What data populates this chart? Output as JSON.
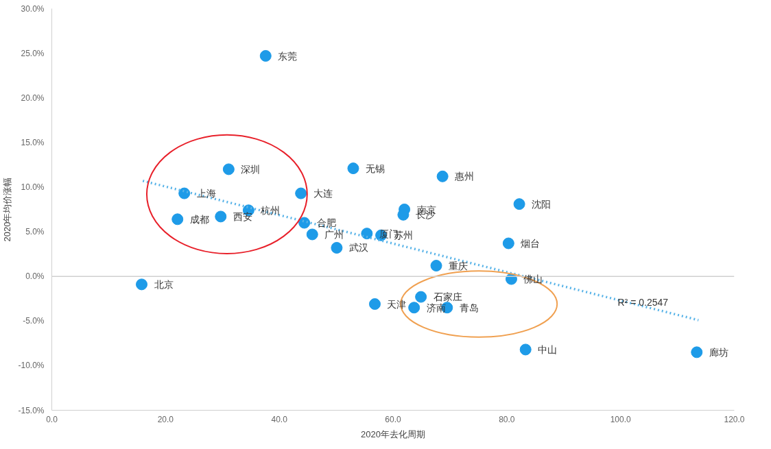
{
  "chart_data": {
    "type": "scatter",
    "xlabel": "2020年去化周期",
    "ylabel": "2020年均价涨幅",
    "xlim": [
      0,
      120
    ],
    "ylim": [
      -15,
      30
    ],
    "xticks": [
      {
        "value": 0,
        "label": "0.0"
      },
      {
        "value": 20,
        "label": "20.0"
      },
      {
        "value": 40,
        "label": "40.0"
      },
      {
        "value": 60,
        "label": "60.0"
      },
      {
        "value": 80,
        "label": "80.0"
      },
      {
        "value": 100,
        "label": "100.0"
      },
      {
        "value": 120,
        "label": "120.0"
      }
    ],
    "yticks": [
      {
        "value": -15,
        "label": "-15.0%"
      },
      {
        "value": -10,
        "label": "-10.0%"
      },
      {
        "value": -5,
        "label": "-5.0%"
      },
      {
        "value": 0,
        "label": "0.0%"
      },
      {
        "value": 5,
        "label": "5.0%"
      },
      {
        "value": 10,
        "label": "10.0%"
      },
      {
        "value": 15,
        "label": "15.0%"
      },
      {
        "value": 20,
        "label": "20.0%"
      },
      {
        "value": 25,
        "label": "25.0%"
      },
      {
        "value": 30,
        "label": "30.0%"
      }
    ],
    "ref_lines": [
      {
        "axis": "y",
        "value": 0,
        "color": "#d0d0d0"
      }
    ],
    "grid": false,
    "marker": "circle",
    "series": [
      {
        "color": "#1e9be8",
        "x": [
          37.6,
          31.1,
          53.0,
          68.7,
          23.3,
          43.8,
          82.2,
          34.6,
          62.0,
          61.8,
          22.1,
          29.7,
          44.4,
          45.8,
          55.4,
          57.9,
          80.3,
          50.1,
          67.6,
          80.8,
          15.8,
          64.9,
          56.8,
          63.7,
          69.5,
          83.3,
          113.4
        ],
        "values": [
          24.7,
          12.0,
          12.1,
          11.2,
          9.3,
          9.3,
          8.1,
          7.4,
          7.5,
          6.9,
          6.4,
          6.7,
          6.0,
          4.7,
          4.8,
          4.6,
          3.7,
          3.2,
          1.2,
          -0.3,
          -0.9,
          -2.3,
          -3.1,
          -3.5,
          -3.5,
          -8.2,
          -8.5
        ]
      },
      {
        "type": "line",
        "color": "#5ab4e8",
        "line_style": "dotted",
        "marker": "none",
        "x": [
          16,
          113.7
        ],
        "values": [
          10.7,
          -4.9
        ]
      }
    ],
    "annotations": [
      {
        "text": "东莞",
        "x": 37.6,
        "y": 24.7
      },
      {
        "text": "深圳",
        "x": 31.1,
        "y": 12.0
      },
      {
        "text": "无锡",
        "x": 53.0,
        "y": 12.1
      },
      {
        "text": "惠州",
        "x": 68.7,
        "y": 11.2
      },
      {
        "text": "上海",
        "x": 23.3,
        "y": 9.3
      },
      {
        "text": "大连",
        "x": 43.8,
        "y": 9.3
      },
      {
        "text": "沈阳",
        "x": 82.2,
        "y": 8.1
      },
      {
        "text": "杭州",
        "x": 34.6,
        "y": 7.4
      },
      {
        "text": "南京",
        "x": 62.0,
        "y": 7.5
      },
      {
        "text": "长沙",
        "x": 61.8,
        "y": 6.9
      },
      {
        "text": "成都",
        "x": 22.1,
        "y": 6.4
      },
      {
        "text": "西安",
        "x": 29.7,
        "y": 6.7
      },
      {
        "text": "合肥",
        "x": 44.4,
        "y": 6.0
      },
      {
        "text": "广州",
        "x": 45.8,
        "y": 4.7
      },
      {
        "text": "厦门",
        "x": 55.4,
        "y": 4.8
      },
      {
        "text": "苏州",
        "x": 57.9,
        "y": 4.6
      },
      {
        "text": "烟台",
        "x": 80.3,
        "y": 3.7
      },
      {
        "text": "武汉",
        "x": 50.1,
        "y": 3.2
      },
      {
        "text": "重庆",
        "x": 67.6,
        "y": 1.2
      },
      {
        "text": "佛山",
        "x": 80.8,
        "y": -0.3
      },
      {
        "text": "北京",
        "x": 15.8,
        "y": -0.9
      },
      {
        "text": "石家庄",
        "x": 64.9,
        "y": -2.3
      },
      {
        "text": "天津",
        "x": 56.8,
        "y": -3.1
      },
      {
        "text": "济南",
        "x": 63.7,
        "y": -3.5
      },
      {
        "text": "青岛",
        "x": 69.5,
        "y": -3.5
      },
      {
        "text": "中山",
        "x": 83.3,
        "y": -8.2
      },
      {
        "text": "廊坊",
        "x": 113.4,
        "y": -8.5
      },
      "R² = 0.2547"
    ]
  }
}
